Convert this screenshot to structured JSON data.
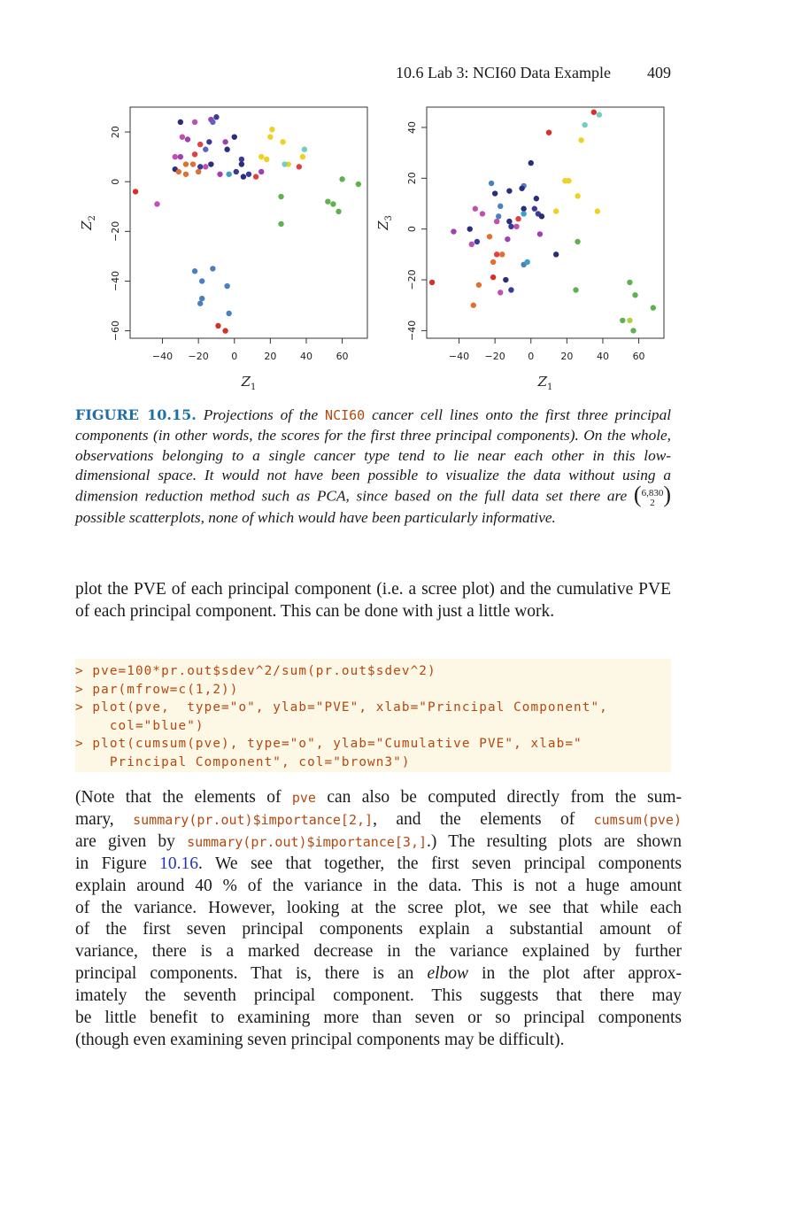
{
  "header": {
    "section": "10.6 Lab 3: NCI60 Data Example",
    "page_number": "409"
  },
  "chart_data": [
    {
      "type": "scatter",
      "xlabel": "Z1",
      "ylabel": "Z2",
      "xlim": [
        -58,
        74
      ],
      "ylim": [
        -63,
        30
      ],
      "xticks": [
        -40,
        -20,
        0,
        20,
        40,
        60
      ],
      "yticks": [
        -60,
        -40,
        -20,
        0,
        20
      ],
      "points": [
        {
          "x": -55,
          "y": -4,
          "c": "#d73027"
        },
        {
          "x": -43,
          "y": -9,
          "c": "#c050b0"
        },
        {
          "x": -30,
          "y": 24,
          "c": "#2b2d7a"
        },
        {
          "x": -22,
          "y": 24,
          "c": "#c050b0"
        },
        {
          "x": -13,
          "y": 25,
          "c": "#a040b0"
        },
        {
          "x": -10,
          "y": 26,
          "c": "#3a3a9a"
        },
        {
          "x": -12,
          "y": 24,
          "c": "#6060c0"
        },
        {
          "x": -29,
          "y": 18,
          "c": "#c050b0"
        },
        {
          "x": -26,
          "y": 17,
          "c": "#a040b0"
        },
        {
          "x": -19,
          "y": 15,
          "c": "#e04040"
        },
        {
          "x": -14,
          "y": 16,
          "c": "#3a3a9a"
        },
        {
          "x": -5,
          "y": 16,
          "c": "#a040b0"
        },
        {
          "x": 0,
          "y": 18,
          "c": "#2b2d7a"
        },
        {
          "x": -33,
          "y": 10,
          "c": "#c050b0"
        },
        {
          "x": -30,
          "y": 10,
          "c": "#a040b0"
        },
        {
          "x": -22,
          "y": 11,
          "c": "#e04040"
        },
        {
          "x": -16,
          "y": 13,
          "c": "#6060c0"
        },
        {
          "x": -4,
          "y": 13,
          "c": "#2b2d7a"
        },
        {
          "x": 4,
          "y": 9,
          "c": "#3a3a9a"
        },
        {
          "x": 4,
          "y": 7,
          "c": "#2b2d7a"
        },
        {
          "x": -27,
          "y": 7,
          "c": "#e07030"
        },
        {
          "x": -23,
          "y": 7,
          "c": "#e07030"
        },
        {
          "x": -19,
          "y": 6,
          "c": "#3a3a9a"
        },
        {
          "x": -13,
          "y": 7,
          "c": "#2b2d7a"
        },
        {
          "x": -33,
          "y": 5,
          "c": "#2b2d7a"
        },
        {
          "x": -31,
          "y": 4,
          "c": "#e07030"
        },
        {
          "x": -27,
          "y": 3,
          "c": "#e07030"
        },
        {
          "x": -20,
          "y": 4,
          "c": "#e07030"
        },
        {
          "x": -16,
          "y": 6,
          "c": "#c050b0"
        },
        {
          "x": -8,
          "y": 3,
          "c": "#a040b0"
        },
        {
          "x": -3,
          "y": 3,
          "c": "#3aa0c8"
        },
        {
          "x": 1,
          "y": 4,
          "c": "#3a3a9a"
        },
        {
          "x": 5,
          "y": 2,
          "c": "#2b2d7a"
        },
        {
          "x": 8,
          "y": 3,
          "c": "#3a3a9a"
        },
        {
          "x": 12,
          "y": 2,
          "c": "#e04040"
        },
        {
          "x": 15,
          "y": 4,
          "c": "#a040b0"
        },
        {
          "x": 18,
          "y": 9,
          "c": "#f0d020"
        },
        {
          "x": 15,
          "y": 10,
          "c": "#f0d020"
        },
        {
          "x": 21,
          "y": 21,
          "c": "#f0d020"
        },
        {
          "x": 20,
          "y": 18,
          "c": "#f0d020"
        },
        {
          "x": 27,
          "y": 16,
          "c": "#f0d020"
        },
        {
          "x": 30,
          "y": 7,
          "c": "#f0d020"
        },
        {
          "x": 28,
          "y": 7,
          "c": "#70d0c0"
        },
        {
          "x": 36,
          "y": 6,
          "c": "#e04040"
        },
        {
          "x": 38,
          "y": 10,
          "c": "#f0d020"
        },
        {
          "x": 39,
          "y": 13,
          "c": "#70d0c0"
        },
        {
          "x": 26,
          "y": -6,
          "c": "#60b050"
        },
        {
          "x": 26,
          "y": -17,
          "c": "#60b050"
        },
        {
          "x": 52,
          "y": -8,
          "c": "#60b050"
        },
        {
          "x": 55,
          "y": -9,
          "c": "#60b050"
        },
        {
          "x": 58,
          "y": -12,
          "c": "#60b050"
        },
        {
          "x": 60,
          "y": 1,
          "c": "#60b050"
        },
        {
          "x": 69,
          "y": -1,
          "c": "#60b050"
        },
        {
          "x": -22,
          "y": -36,
          "c": "#4a80c0"
        },
        {
          "x": -12,
          "y": -35,
          "c": "#4a80c0"
        },
        {
          "x": -18,
          "y": -40,
          "c": "#4a80c0"
        },
        {
          "x": -4,
          "y": -42,
          "c": "#4a80c0"
        },
        {
          "x": -18,
          "y": -47,
          "c": "#4a80c0"
        },
        {
          "x": -19,
          "y": -49,
          "c": "#4a80c0"
        },
        {
          "x": -3,
          "y": -53,
          "c": "#4a80c0"
        },
        {
          "x": -9,
          "y": -58,
          "c": "#d73027"
        },
        {
          "x": -5,
          "y": -60,
          "c": "#d73027"
        }
      ]
    },
    {
      "type": "scatter",
      "xlabel": "Z1",
      "ylabel": "Z3",
      "xlim": [
        -58,
        74
      ],
      "ylim": [
        -43,
        48
      ],
      "xticks": [
        -40,
        -20,
        0,
        20,
        40,
        60
      ],
      "yticks": [
        -40,
        -20,
        0,
        20,
        40
      ],
      "points": [
        {
          "x": -55,
          "y": -21,
          "c": "#d73027"
        },
        {
          "x": -43,
          "y": -1,
          "c": "#a040b0"
        },
        {
          "x": -34,
          "y": 0,
          "c": "#2b2d7a"
        },
        {
          "x": -32,
          "y": -30,
          "c": "#e07030"
        },
        {
          "x": -31,
          "y": 8,
          "c": "#c050b0"
        },
        {
          "x": -33,
          "y": -6,
          "c": "#c050b0"
        },
        {
          "x": -30,
          "y": -5,
          "c": "#3a3a9a"
        },
        {
          "x": -29,
          "y": -22,
          "c": "#e07030"
        },
        {
          "x": -27,
          "y": 6,
          "c": "#c050b0"
        },
        {
          "x": -22,
          "y": 18,
          "c": "#4a80c0"
        },
        {
          "x": -23,
          "y": -3,
          "c": "#e07030"
        },
        {
          "x": -20,
          "y": 14,
          "c": "#2b2d7a"
        },
        {
          "x": -17,
          "y": 9,
          "c": "#4a80c0"
        },
        {
          "x": -18,
          "y": 5,
          "c": "#4a80c0"
        },
        {
          "x": -19,
          "y": 3,
          "c": "#c050b0"
        },
        {
          "x": -21,
          "y": -13,
          "c": "#e07030"
        },
        {
          "x": -19,
          "y": -10,
          "c": "#e04040"
        },
        {
          "x": -16,
          "y": -10,
          "c": "#e07030"
        },
        {
          "x": -21,
          "y": -19,
          "c": "#d73027"
        },
        {
          "x": -17,
          "y": -25,
          "c": "#c050b0"
        },
        {
          "x": -14,
          "y": -20,
          "c": "#2b2d7a"
        },
        {
          "x": -12,
          "y": 15,
          "c": "#2b2d7a"
        },
        {
          "x": -12,
          "y": 3,
          "c": "#2b2d7a"
        },
        {
          "x": -11,
          "y": 1,
          "c": "#3a3a9a"
        },
        {
          "x": -13,
          "y": -4,
          "c": "#a040b0"
        },
        {
          "x": -8,
          "y": 1,
          "c": "#c050b0"
        },
        {
          "x": -11,
          "y": -24,
          "c": "#3a3a9a"
        },
        {
          "x": -7,
          "y": 4,
          "c": "#e04040"
        },
        {
          "x": -4,
          "y": 17,
          "c": "#4a80c0"
        },
        {
          "x": -5,
          "y": 16,
          "c": "#2b2d7a"
        },
        {
          "x": -4,
          "y": 8,
          "c": "#2b2d7a"
        },
        {
          "x": -4,
          "y": 6,
          "c": "#3aa0c8"
        },
        {
          "x": -4,
          "y": -14,
          "c": "#4a80c0"
        },
        {
          "x": -2,
          "y": -13,
          "c": "#3aa0c8"
        },
        {
          "x": 0,
          "y": 26,
          "c": "#2b2d7a"
        },
        {
          "x": 2,
          "y": 8,
          "c": "#3a3a9a"
        },
        {
          "x": 3,
          "y": 12,
          "c": "#2b2d7a"
        },
        {
          "x": 4,
          "y": 6,
          "c": "#3a3a9a"
        },
        {
          "x": 6,
          "y": 5,
          "c": "#2b2d7a"
        },
        {
          "x": 5,
          "y": -2,
          "c": "#a040b0"
        },
        {
          "x": 10,
          "y": 38,
          "c": "#d73027"
        },
        {
          "x": 14,
          "y": -10,
          "c": "#2b2d7a"
        },
        {
          "x": 14,
          "y": 7,
          "c": "#f0d020"
        },
        {
          "x": 19,
          "y": 19,
          "c": "#f0d020"
        },
        {
          "x": 21,
          "y": 19,
          "c": "#f0d020"
        },
        {
          "x": 26,
          "y": 13,
          "c": "#f0d020"
        },
        {
          "x": 28,
          "y": 35,
          "c": "#f0d020"
        },
        {
          "x": 30,
          "y": 41,
          "c": "#70d0c0"
        },
        {
          "x": 35,
          "y": 46,
          "c": "#d73027"
        },
        {
          "x": 38,
          "y": 45,
          "c": "#70d0c0"
        },
        {
          "x": 37,
          "y": 7,
          "c": "#f0d020"
        },
        {
          "x": 26,
          "y": -5,
          "c": "#60b050"
        },
        {
          "x": 25,
          "y": -24,
          "c": "#60b050"
        },
        {
          "x": 55,
          "y": -21,
          "c": "#60b050"
        },
        {
          "x": 58,
          "y": -26,
          "c": "#60b050"
        },
        {
          "x": 51,
          "y": -36,
          "c": "#60b050"
        },
        {
          "x": 55,
          "y": -36,
          "c": "#b0d040"
        },
        {
          "x": 57,
          "y": -40,
          "c": "#60b050"
        },
        {
          "x": 68,
          "y": -31,
          "c": "#60b050"
        }
      ]
    }
  ],
  "caption": {
    "label": "FIGURE 10.15.",
    "t1": "Projections of the",
    "code": "NCI60",
    "t2": "cancer cell lines onto the first three principal components (in other words, the scores for the first three principal components). On the whole, observations belonging to a single cancer type tend to lie near each other in this low-dimensional space. It would not have been possible to visualize the data without using a dimension reduction method such as PCA, since based on the full data set there are",
    "binom_top": "6,830",
    "binom_bottom": "2",
    "t3": "possible scatterplots, none of which would have been particularly informative."
  },
  "para1": "plot the PVE of each principal component (i.e. a scree plot) and the cumulative PVE of each principal component. This can be done with just a little work.",
  "code_lines": [
    "> pve=100*pr.out$sdev^2/sum(pr.out$sdev^2)",
    "> par(mfrow=c(1,2))",
    "> plot(pve,  type=\"o\", ylab=\"PVE\", xlab=\"Principal Component\",",
    "    col=\"blue\")",
    "> plot(cumsum(pve), type=\"o\", ylab=\"Cumulative PVE\", xlab=\"",
    "    Principal Component\", col=\"brown3\")"
  ],
  "para2": {
    "l1a": "(Note that the elements of",
    "l1code": "pve",
    "l1b": "can also be computed directly from the sum-",
    "l2a": "mary,",
    "l2code1": "summary(pr.out)$importance[2,]",
    "l2b": ", and the elements of",
    "l2code2": "cumsum(pve)",
    "l3a": "are given by",
    "l3code": "summary(pr.out)$importance[3,]",
    "l3b": ".) The resulting plots are shown",
    "l4a": "in Figure",
    "l4link": "10.16",
    "l4b": ". We see that together, the first seven principal components",
    "l5": "explain around 40 % of the variance in the data. This is not a huge amount",
    "l6": "of the variance. However, looking at the scree plot, we see that while each",
    "l7": "of the first seven principal components explain a substantial amount of",
    "l8": "variance, there is a marked decrease in the variance explained by further",
    "l9a": "principal components. That is, there is an",
    "l9em": "elbow",
    "l9b": "in the plot after approx-",
    "l10": "imately the seventh principal component. This suggests that there may",
    "l11": "be little benefit to examining more than seven or so principal components",
    "l12": "(though even examining seven principal components may be difficult)."
  }
}
